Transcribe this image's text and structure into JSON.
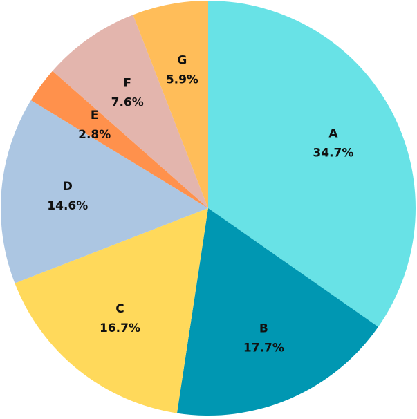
{
  "chart_data": {
    "type": "pie",
    "title": "",
    "start_angle_deg": 0,
    "direction": "clockwise",
    "slices": [
      {
        "label": "A",
        "value": 34.7,
        "display": "34.7%",
        "color": "#68E2E6"
      },
      {
        "label": "B",
        "value": 17.7,
        "display": "17.7%",
        "color": "#0097B2"
      },
      {
        "label": "C",
        "value": 16.7,
        "display": "16.7%",
        "color": "#FFD95B"
      },
      {
        "label": "D",
        "value": 14.6,
        "display": "14.6%",
        "color": "#ACC6E2"
      },
      {
        "label": "E",
        "value": 2.8,
        "display": "2.8%",
        "color": "#FF914C"
      },
      {
        "label": "F",
        "value": 7.6,
        "display": "7.6%",
        "color": "#E3B5AD"
      },
      {
        "label": "G",
        "value": 5.9,
        "display": "5.9%",
        "color": "#FFBD59"
      }
    ],
    "legend": "none",
    "labels_inside": true
  }
}
